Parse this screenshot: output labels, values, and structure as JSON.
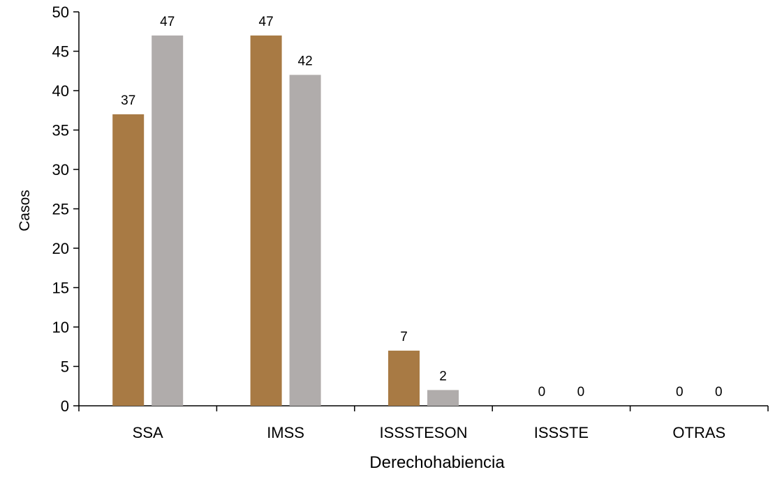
{
  "chart_data": {
    "type": "bar",
    "categories": [
      "SSA",
      "IMSS",
      "ISSSTESON",
      "ISSSTE",
      "OTRAS"
    ],
    "series": [
      {
        "values": [
          37,
          47,
          7,
          0,
          0
        ],
        "color": "#a87a44"
      },
      {
        "values": [
          47,
          42,
          2,
          0,
          0
        ],
        "color": "#b0acab"
      }
    ],
    "ylim": [
      0,
      50
    ],
    "yticks": [
      0,
      5,
      10,
      15,
      20,
      25,
      30,
      35,
      40,
      45,
      50
    ],
    "xlabel": "Derechohabiencia",
    "ylabel": "Casos",
    "grid": false,
    "legend": "none",
    "data_labels": true
  }
}
